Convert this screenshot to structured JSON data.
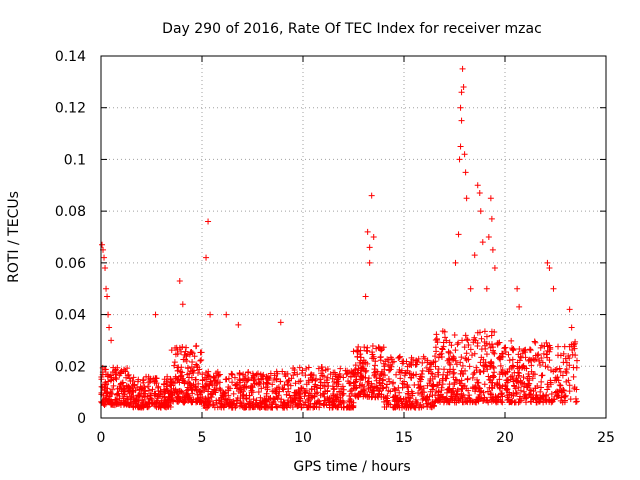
{
  "chart_data": {
    "type": "scatter",
    "title": "Day 290 of 2016, Rate Of TEC Index for receiver mzac",
    "xlabel": "GPS time / hours",
    "ylabel": "ROTI / TECUs",
    "xlim": [
      0,
      25
    ],
    "ylim": [
      0,
      0.14
    ],
    "xticks": [
      0,
      5,
      10,
      15,
      20,
      25
    ],
    "yticks": [
      0,
      0.02,
      0.04,
      0.06,
      0.08,
      0.1,
      0.12,
      0.14
    ],
    "xtick_labels": [
      "0",
      "5",
      "10",
      "15",
      "20",
      "25"
    ],
    "ytick_labels": [
      "0",
      "0.02",
      "0.04",
      "0.06",
      "0.08",
      "0.1",
      "0.12",
      "0.14"
    ],
    "grid": true,
    "marker": "+",
    "series_color": "#ff0000",
    "series": [
      {
        "name": "ROTI",
        "highlights": [
          {
            "x": 0.05,
            "y": 0.067
          },
          {
            "x": 0.1,
            "y": 0.065
          },
          {
            "x": 0.15,
            "y": 0.062
          },
          {
            "x": 0.2,
            "y": 0.058
          },
          {
            "x": 0.25,
            "y": 0.05
          },
          {
            "x": 0.3,
            "y": 0.047
          },
          {
            "x": 0.35,
            "y": 0.04
          },
          {
            "x": 0.4,
            "y": 0.035
          },
          {
            "x": 0.5,
            "y": 0.03
          },
          {
            "x": 2.7,
            "y": 0.04
          },
          {
            "x": 3.9,
            "y": 0.053
          },
          {
            "x": 4.05,
            "y": 0.044
          },
          {
            "x": 5.2,
            "y": 0.062
          },
          {
            "x": 5.3,
            "y": 0.076
          },
          {
            "x": 5.4,
            "y": 0.04
          },
          {
            "x": 6.2,
            "y": 0.04
          },
          {
            "x": 6.8,
            "y": 0.036
          },
          {
            "x": 8.9,
            "y": 0.037
          },
          {
            "x": 13.2,
            "y": 0.072
          },
          {
            "x": 13.3,
            "y": 0.066
          },
          {
            "x": 13.4,
            "y": 0.086
          },
          {
            "x": 13.5,
            "y": 0.07
          },
          {
            "x": 13.3,
            "y": 0.06
          },
          {
            "x": 13.1,
            "y": 0.047
          },
          {
            "x": 17.55,
            "y": 0.06
          },
          {
            "x": 17.7,
            "y": 0.071
          },
          {
            "x": 17.75,
            "y": 0.1
          },
          {
            "x": 17.8,
            "y": 0.105
          },
          {
            "x": 17.85,
            "y": 0.115
          },
          {
            "x": 17.8,
            "y": 0.12
          },
          {
            "x": 17.85,
            "y": 0.126
          },
          {
            "x": 17.9,
            "y": 0.135
          },
          {
            "x": 17.95,
            "y": 0.128
          },
          {
            "x": 18.0,
            "y": 0.102
          },
          {
            "x": 18.05,
            "y": 0.095
          },
          {
            "x": 18.1,
            "y": 0.085
          },
          {
            "x": 18.3,
            "y": 0.05
          },
          {
            "x": 18.5,
            "y": 0.063
          },
          {
            "x": 18.65,
            "y": 0.09
          },
          {
            "x": 18.75,
            "y": 0.087
          },
          {
            "x": 18.8,
            "y": 0.08
          },
          {
            "x": 18.9,
            "y": 0.068
          },
          {
            "x": 19.1,
            "y": 0.05
          },
          {
            "x": 19.2,
            "y": 0.07
          },
          {
            "x": 19.3,
            "y": 0.085
          },
          {
            "x": 19.35,
            "y": 0.077
          },
          {
            "x": 19.4,
            "y": 0.065
          },
          {
            "x": 19.5,
            "y": 0.058
          },
          {
            "x": 20.6,
            "y": 0.05
          },
          {
            "x": 20.7,
            "y": 0.043
          },
          {
            "x": 22.1,
            "y": 0.06
          },
          {
            "x": 22.2,
            "y": 0.058
          },
          {
            "x": 22.4,
            "y": 0.05
          },
          {
            "x": 23.2,
            "y": 0.042
          },
          {
            "x": 23.3,
            "y": 0.035
          }
        ],
        "cluster_profile": [
          {
            "x0": 0.0,
            "x1": 1.5,
            "ymin": 0.005,
            "ymax": 0.02,
            "n": 170
          },
          {
            "x0": 1.5,
            "x1": 3.5,
            "ymin": 0.004,
            "ymax": 0.016,
            "n": 190
          },
          {
            "x0": 3.5,
            "x1": 5.0,
            "ymin": 0.006,
            "ymax": 0.028,
            "n": 170
          },
          {
            "x0": 5.0,
            "x1": 9.5,
            "ymin": 0.004,
            "ymax": 0.018,
            "n": 380
          },
          {
            "x0": 9.5,
            "x1": 12.5,
            "ymin": 0.004,
            "ymax": 0.02,
            "n": 260
          },
          {
            "x0": 12.5,
            "x1": 14.0,
            "ymin": 0.008,
            "ymax": 0.028,
            "n": 160
          },
          {
            "x0": 14.0,
            "x1": 16.5,
            "ymin": 0.004,
            "ymax": 0.024,
            "n": 230
          },
          {
            "x0": 16.5,
            "x1": 19.5,
            "ymin": 0.006,
            "ymax": 0.034,
            "n": 300
          },
          {
            "x0": 19.5,
            "x1": 23.6,
            "ymin": 0.006,
            "ymax": 0.03,
            "n": 340
          }
        ]
      }
    ]
  }
}
